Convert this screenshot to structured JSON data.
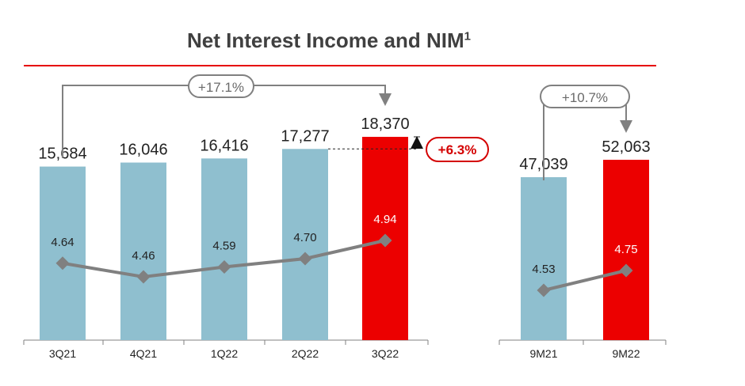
{
  "title": "Net Interest Income and NIM",
  "title_sup": "1",
  "chart_data": [
    {
      "type": "bar",
      "categories": [
        "3Q21",
        "4Q21",
        "1Q22",
        "2Q22",
        "3Q22"
      ],
      "series": [
        {
          "values": [
            15684,
            16046,
            16416,
            17277,
            18370
          ]
        },
        {
          "type": "line",
          "values": [
            4.64,
            4.46,
            4.59,
            4.7,
            4.94
          ]
        }
      ],
      "value_labels": [
        "15,684",
        "16,046",
        "16,416",
        "17,277",
        "18,370"
      ],
      "line_labels": [
        "4.64",
        "4.46",
        "4.59",
        "4.70",
        "4.94"
      ],
      "annotations": [
        "+17.1%",
        "+6.3%"
      ],
      "colors": {
        "bar": "#8fbfcf",
        "highlight": "#ec0000",
        "line": "#808080"
      }
    },
    {
      "type": "bar",
      "categories": [
        "9M21",
        "9M22"
      ],
      "series": [
        {
          "values": [
            47039,
            52063
          ]
        },
        {
          "type": "line",
          "values": [
            4.53,
            4.75
          ]
        }
      ],
      "value_labels": [
        "47,039",
        "52,063"
      ],
      "line_labels": [
        "4.53",
        "4.75"
      ],
      "annotations": [
        "+10.7%"
      ],
      "colors": {
        "bar": "#8fbfcf",
        "highlight": "#ec0000",
        "line": "#808080"
      }
    }
  ]
}
